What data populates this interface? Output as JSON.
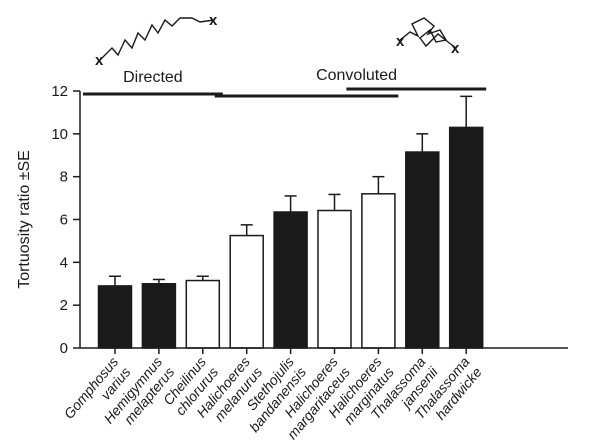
{
  "chart_data": {
    "type": "bar",
    "ylabel": "Tortuosity  ratio ±SE",
    "ylim": [
      0,
      12
    ],
    "yticks": [
      "0",
      "2",
      "4",
      "6",
      "8",
      "10",
      "12"
    ],
    "grid": false,
    "categories": [
      {
        "line1": "Gomphosus",
        "line2": "varius"
      },
      {
        "line1": "Hemigymnus",
        "line2": "melapterus"
      },
      {
        "line1": "Cheilinus",
        "line2": "chlorurus"
      },
      {
        "line1": "Halichoeres",
        "line2": "melanurus"
      },
      {
        "line1": "Stethojulis",
        "line2": "bandanensis"
      },
      {
        "line1": "Halichoeres",
        "line2": "margaritaceus"
      },
      {
        "line1": "Halichoeres",
        "line2": "marginatus"
      },
      {
        "line1": "Thalassoma",
        "line2": "jansenii"
      },
      {
        "line1": "Thalassoma",
        "line2": "hardwicke"
      }
    ],
    "values": [
      2.9,
      3.0,
      3.15,
      5.25,
      6.35,
      6.42,
      7.2,
      9.15,
      10.3
    ],
    "se": [
      0.45,
      0.2,
      0.2,
      0.5,
      0.75,
      0.75,
      0.8,
      0.85,
      1.45
    ],
    "bar_fill": [
      "#1a1a1a",
      "#1a1a1a",
      "#ffffff",
      "#ffffff",
      "#1a1a1a",
      "#ffffff",
      "#ffffff",
      "#1a1a1a",
      "#1a1a1a"
    ],
    "groups": [
      {
        "label": "Directed",
        "from": 0,
        "to": 2,
        "icon": "directed-path-icon"
      },
      {
        "label": "Convoluted",
        "from": 3,
        "to": 6,
        "icon": "convoluted-path-icon"
      },
      {
        "label": "",
        "from": 6,
        "to": 8
      }
    ],
    "path_icon_glyph": "x"
  }
}
